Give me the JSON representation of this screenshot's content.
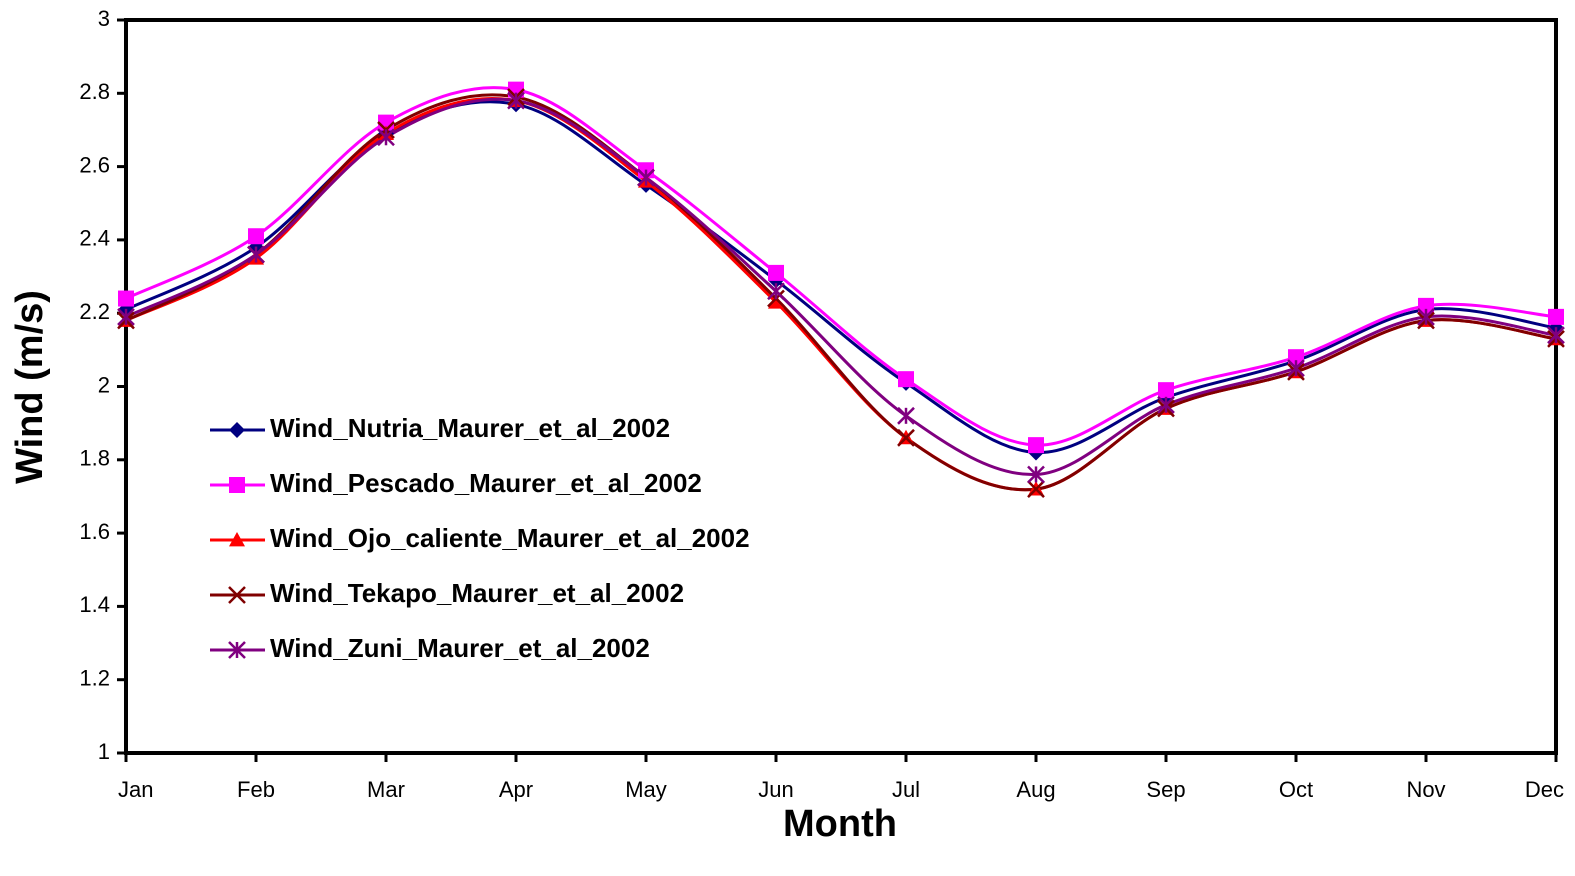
{
  "chart_data": {
    "type": "line",
    "x_label": "Month",
    "y_label": "Wind (m/s)",
    "categories": [
      "Jan",
      "Feb",
      "Mar",
      "Apr",
      "May",
      "Jun",
      "Jul",
      "Aug",
      "Sep",
      "Oct",
      "Nov",
      "Dec"
    ],
    "ylim": [
      1,
      3
    ],
    "yticks": [
      1,
      1.2,
      1.4,
      1.6,
      1.8,
      2,
      2.2,
      2.4,
      2.6,
      2.8,
      3
    ],
    "smooth": true,
    "legend": "left",
    "series": [
      {
        "name": "Wind_Nutria_Maurer_et_al_2002",
        "color": "#000080",
        "marker": "diamond",
        "values": [
          2.21,
          2.38,
          2.69,
          2.77,
          2.55,
          2.29,
          2.01,
          1.82,
          1.97,
          2.07,
          2.21,
          2.16
        ]
      },
      {
        "name": "Wind_Pescado_Maurer_et_al_2002",
        "color": "#ff00ff",
        "marker": "square",
        "values": [
          2.24,
          2.41,
          2.72,
          2.81,
          2.59,
          2.31,
          2.02,
          1.84,
          1.99,
          2.08,
          2.22,
          2.19
        ]
      },
      {
        "name": "Wind_Ojo_caliente_Maurer_et_al_2002",
        "color": "#ff0000",
        "marker": "triangle",
        "values": [
          2.18,
          2.35,
          2.69,
          2.78,
          2.56,
          2.23,
          1.86,
          1.72,
          1.94,
          2.04,
          2.18,
          2.13
        ]
      },
      {
        "name": "Wind_Tekapo_Maurer_et_al_2002",
        "color": "#800000",
        "marker": "x",
        "values": [
          2.18,
          2.36,
          2.7,
          2.79,
          2.57,
          2.24,
          1.86,
          1.72,
          1.94,
          2.04,
          2.18,
          2.13
        ]
      },
      {
        "name": "Wind_Zuni_Maurer_et_al_2002",
        "color": "#800080",
        "marker": "star",
        "values": [
          2.19,
          2.36,
          2.68,
          2.78,
          2.57,
          2.26,
          1.92,
          1.76,
          1.95,
          2.05,
          2.19,
          2.14
        ]
      }
    ]
  }
}
